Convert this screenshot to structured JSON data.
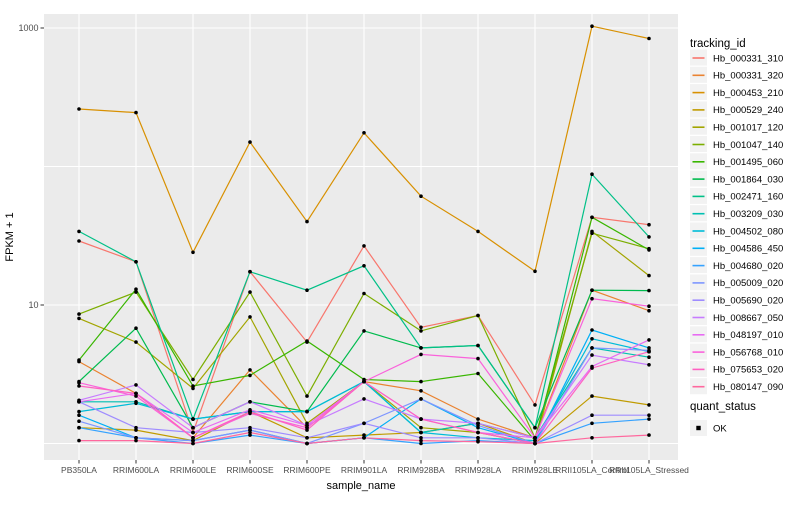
{
  "chart_data": {
    "type": "line",
    "title": "",
    "xlabel": "sample_name",
    "ylabel": "FPKM + 1",
    "y_scale": "log10",
    "ylim": [
      0.75,
      1400
    ],
    "grid": "on",
    "panel_background": "#ebebeb",
    "gridline_color": "#ffffff",
    "point_color": "#000000",
    "y_ticks": [
      {
        "label": "1000",
        "value": 1000
      },
      {
        "label": "10",
        "value": 10
      }
    ],
    "y_gridlines": [
      1,
      10,
      100,
      1000
    ],
    "categories": [
      "PB350LA",
      "RRIM600LA",
      "RRIM600LE",
      "RRIM600SE",
      "RRIM600PE",
      "RRIM901LA",
      "RRIM928BA",
      "RRIM928LA",
      "RRIM928LE",
      "RRII105LA_Control",
      "RRII105LA_Stressed"
    ],
    "legend": {
      "title": "tracking_id",
      "position": "right"
    },
    "quant_status": {
      "title": "quant_status",
      "items": [
        {
          "label": "OK",
          "marker": "black-square"
        }
      ]
    },
    "series": [
      {
        "name": "Hb_000331_310",
        "color": "#F8766D",
        "values": [
          29,
          20.5,
          1.2,
          17.4,
          5.4,
          26.7,
          6.9,
          8.4,
          1.9,
          43,
          38
        ]
      },
      {
        "name": "Hb_000331_320",
        "color": "#EA8331",
        "values": [
          3.9,
          2.3,
          1.1,
          3.4,
          1.3,
          2.8,
          2.4,
          1.5,
          1.1,
          12.8,
          9.1
        ]
      },
      {
        "name": "Hb_000453_210",
        "color": "#D89000",
        "values": [
          260,
          245,
          24,
          150,
          40,
          175,
          61,
          34,
          17.5,
          1030,
          840
        ]
      },
      {
        "name": "Hb_000529_240",
        "color": "#C09B00",
        "values": [
          1.3,
          1.25,
          1.05,
          1.7,
          1.1,
          1.15,
          1.2,
          1.4,
          1.0,
          2.2,
          1.9
        ]
      },
      {
        "name": "Hb_001017_120",
        "color": "#A3A500",
        "values": [
          8.0,
          5.4,
          2.5,
          8.2,
          1.4,
          2.8,
          1.3,
          1.2,
          1.0,
          34,
          16.3
        ]
      },
      {
        "name": "Hb_001047_140",
        "color": "#7CAE00",
        "values": [
          8.6,
          12.4,
          2.9,
          12.4,
          2.2,
          12.1,
          6.5,
          8.4,
          1.1,
          33,
          25.5
        ]
      },
      {
        "name": "Hb_001495_060",
        "color": "#39B600",
        "values": [
          4.0,
          13,
          2.6,
          3.1,
          5.5,
          2.9,
          2.8,
          3.2,
          1.05,
          43,
          25
        ]
      },
      {
        "name": "Hb_001864_030",
        "color": "#00BB4E",
        "values": [
          2.8,
          6.8,
          1.3,
          2.0,
          1.7,
          6.5,
          4.9,
          5.1,
          1.3,
          12.8,
          12.7
        ]
      },
      {
        "name": "Hb_002471_160",
        "color": "#00C087",
        "values": [
          34,
          20.5,
          1.5,
          17.4,
          12.8,
          19.2,
          4.9,
          5.1,
          1.3,
          88,
          31
        ]
      },
      {
        "name": "Hb_003209_030",
        "color": "#00C0B2",
        "values": [
          2.0,
          2.0,
          1.5,
          1.7,
          1.7,
          2.8,
          1.2,
          1.4,
          1.1,
          4.9,
          4.2
        ]
      },
      {
        "name": "Hb_004502_080",
        "color": "#00BCD8",
        "values": [
          1.7,
          1.95,
          1.5,
          1.7,
          1.7,
          2.8,
          1.2,
          1.1,
          1.05,
          5.7,
          4.6
        ]
      },
      {
        "name": "Hb_004586_450",
        "color": "#00B0F6",
        "values": [
          1.6,
          1.1,
          1.05,
          1.25,
          1.0,
          1.1,
          2.1,
          1.3,
          1.0,
          6.6,
          4.9
        ]
      },
      {
        "name": "Hb_004680_020",
        "color": "#35A2FF",
        "values": [
          1.3,
          1.1,
          1.0,
          1.15,
          1.0,
          1.1,
          1.0,
          1.05,
          1.0,
          1.4,
          1.5
        ]
      },
      {
        "name": "Hb_005009_020",
        "color": "#7E96FF",
        "values": [
          1.45,
          1.1,
          1.05,
          1.25,
          1.0,
          1.4,
          2.1,
          1.35,
          1.0,
          4.9,
          4.7
        ]
      },
      {
        "name": "Hb_005690_020",
        "color": "#9F8CFF",
        "values": [
          2.0,
          1.3,
          1.2,
          1.3,
          1.1,
          1.4,
          1.1,
          1.1,
          1.0,
          1.6,
          1.6
        ]
      },
      {
        "name": "Hb_008667_050",
        "color": "#C77CFF",
        "values": [
          2.05,
          2.65,
          1.3,
          2.0,
          1.35,
          2.1,
          1.5,
          1.4,
          1.1,
          4.35,
          3.7
        ]
      },
      {
        "name": "Hb_048197_010",
        "color": "#E76BF3",
        "values": [
          2.0,
          2.3,
          1.2,
          1.75,
          1.35,
          2.8,
          1.5,
          1.2,
          1.1,
          3.6,
          5.6
        ]
      },
      {
        "name": "Hb_056768_010",
        "color": "#FA62DB",
        "values": [
          2.75,
          2.2,
          1.1,
          1.65,
          1.3,
          2.8,
          4.4,
          4.1,
          1.1,
          11.1,
          9.8
        ]
      },
      {
        "name": "Hb_075653_020",
        "color": "#FF61C2",
        "values": [
          2.6,
          2.3,
          1.1,
          1.7,
          1.25,
          2.8,
          1.5,
          1.2,
          1.0,
          3.5,
          4.6
        ]
      },
      {
        "name": "Hb_080147_090",
        "color": "#FF689E",
        "values": [
          1.05,
          1.05,
          1.0,
          1.2,
          1.0,
          1.1,
          1.05,
          1.03,
          1.0,
          1.1,
          1.15
        ]
      }
    ]
  }
}
